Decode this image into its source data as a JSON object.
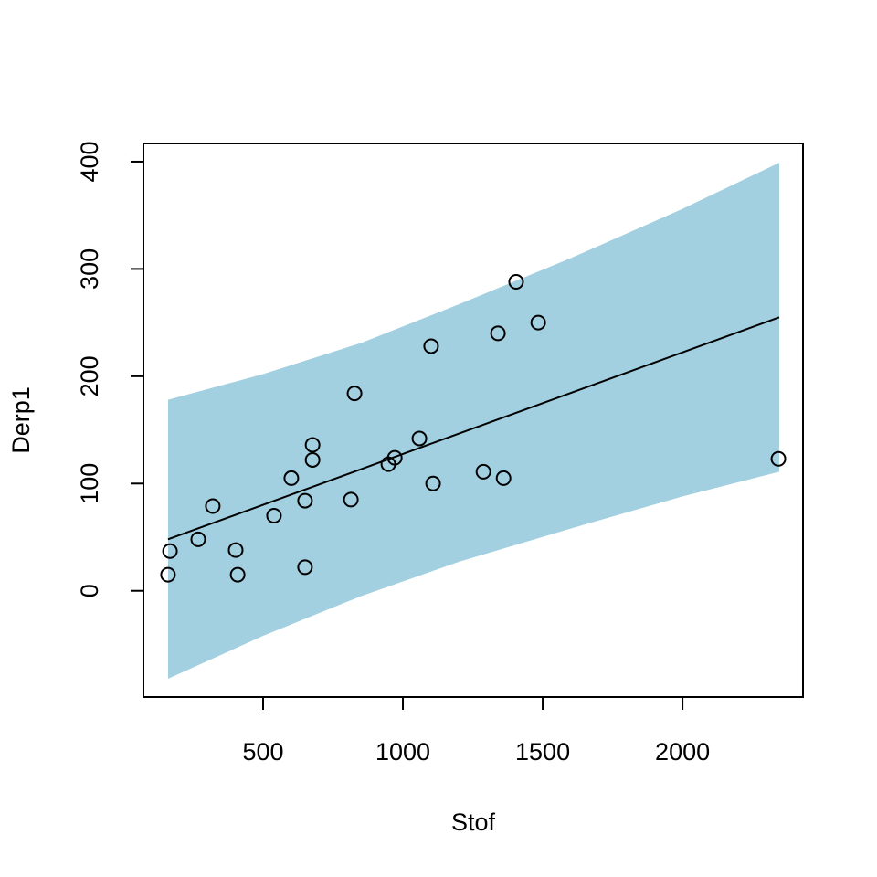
{
  "chart_data": {
    "type": "scatter",
    "xlabel": "Stof",
    "ylabel": "Derp1",
    "x": [
      160,
      167,
      268,
      320,
      402,
      409,
      539,
      601,
      650,
      650,
      677,
      677,
      814,
      827,
      948,
      971,
      1059,
      1101,
      1108,
      1288,
      1340,
      1360,
      1405,
      1484,
      2343
    ],
    "values": [
      15,
      37,
      48,
      79,
      38,
      15,
      70,
      105,
      84,
      22,
      136,
      122,
      85,
      184,
      118,
      124,
      142,
      228,
      100,
      111,
      240,
      105,
      288,
      250,
      123
    ],
    "band": {
      "x": [
        160,
        500,
        850,
        1200,
        1600,
        2000,
        2346
      ],
      "upper": [
        178,
        202,
        231,
        267,
        310,
        356,
        399
      ],
      "lower": [
        -82,
        -42,
        -5,
        27,
        58,
        88,
        111
      ],
      "color": "#a2d0e0"
    },
    "line": {
      "x": [
        160,
        2346
      ],
      "values": [
        48,
        255
      ],
      "color": "#000000"
    },
    "xlim": [
      72,
      2431
    ],
    "ylim": [
      -99,
      417
    ],
    "xticks": [
      500,
      1000,
      1500,
      2000
    ],
    "yticks": [
      0,
      100,
      200,
      300,
      400
    ]
  }
}
